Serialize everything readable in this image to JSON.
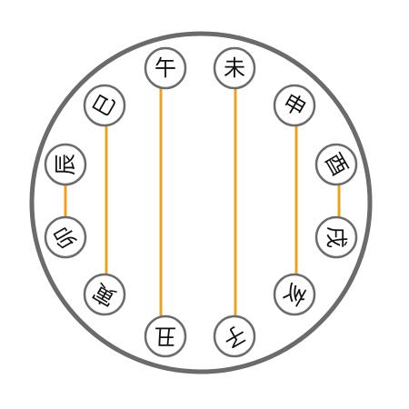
{
  "puzzle": {
    "line_color": "#f0a020",
    "ring_color": "#6b6b6b",
    "nodes": [
      {
        "id": "wu",
        "label": "午",
        "rotation": 0
      },
      {
        "id": "wei",
        "label": "未",
        "rotation": 0
      },
      {
        "id": "shen",
        "label": "申",
        "rotation": 30
      },
      {
        "id": "you",
        "label": "酉",
        "rotation": 60
      },
      {
        "id": "xu",
        "label": "戌",
        "rotation": 90
      },
      {
        "id": "hai",
        "label": "亥",
        "rotation": 120
      },
      {
        "id": "zi",
        "label": "子",
        "rotation": 150
      },
      {
        "id": "chou",
        "label": "丑",
        "rotation": 180
      },
      {
        "id": "yin",
        "label": "寅",
        "rotation": 210
      },
      {
        "id": "mao",
        "label": "卯",
        "rotation": 240
      },
      {
        "id": "chen",
        "label": "辰",
        "rotation": 270
      },
      {
        "id": "si",
        "label": "巳",
        "rotation": 300
      }
    ],
    "links": [
      {
        "from": "wu",
        "to": "chou"
      },
      {
        "from": "wei",
        "to": "zi"
      },
      {
        "from": "shen",
        "to": "hai"
      },
      {
        "from": "you",
        "to": "xu"
      },
      {
        "from": "si",
        "to": "yin"
      },
      {
        "from": "chen",
        "to": "mao"
      }
    ]
  }
}
